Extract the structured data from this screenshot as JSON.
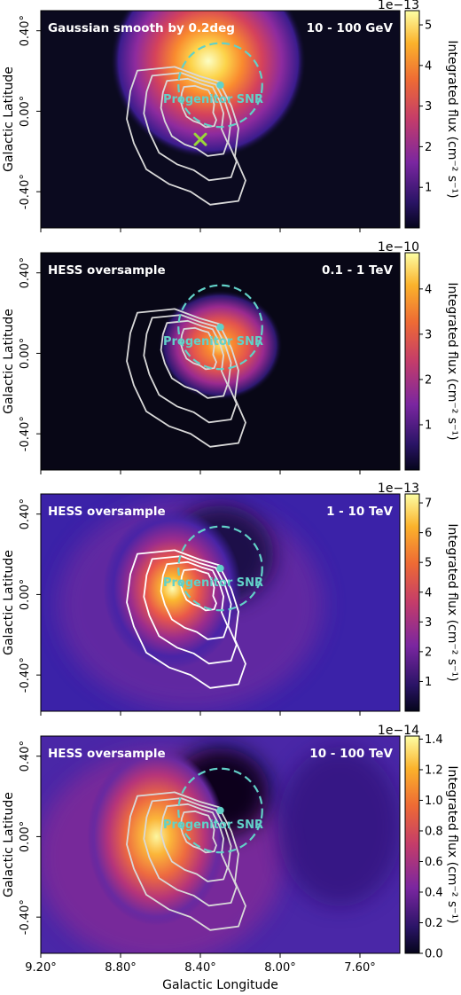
{
  "figure": {
    "ylabel": "Galactic Latitude",
    "xlabel": "Galactic Longitude",
    "colorbar_label": "Integrated flux (cm⁻² s⁻¹)",
    "source_label": "Progenitor SNR"
  },
  "chart_data": [
    {
      "type": "heatmap",
      "title": "Gaussian smooth by 0.2deg",
      "energy_band": "10 - 100 GeV",
      "ylabel": "Galactic Latitude",
      "xlabel": "",
      "yticks": [
        "0.40°",
        "0.00°",
        "-0.40°"
      ],
      "xlim": [
        9.2,
        7.4
      ],
      "ylim": [
        -0.58,
        0.5
      ],
      "colorbar": {
        "scale_label": "1e−13",
        "ticks": [
          1,
          2,
          3,
          4,
          5
        ],
        "max": 5.35,
        "min": 0
      },
      "hotspot": {
        "l": 8.36,
        "b": 0.25,
        "peak": 5.2
      },
      "marker": {
        "symbol": "x",
        "l": 8.4,
        "b": -0.14,
        "color": "#9ad63a"
      }
    },
    {
      "type": "heatmap",
      "title": "HESS oversample",
      "energy_band": "0.1 - 1 TeV",
      "ylabel": "Galactic Latitude",
      "xlabel": "",
      "yticks": [
        "0.40°",
        "0.00°",
        "-0.40°"
      ],
      "xlim": [
        9.2,
        7.4
      ],
      "ylim": [
        -0.58,
        0.5
      ],
      "colorbar": {
        "scale_label": "1e−10",
        "ticks": [
          1,
          2,
          3,
          4
        ],
        "max": 4.8,
        "min": 0
      },
      "hotspot": {
        "l": 8.3,
        "b": 0.04,
        "peak": 4.8
      }
    },
    {
      "type": "heatmap",
      "title": "HESS oversample",
      "energy_band": "1 - 10 TeV",
      "ylabel": "Galactic Latitude",
      "xlabel": "",
      "yticks": [
        "0.40°",
        "0.00°",
        "-0.40°"
      ],
      "xlim": [
        9.2,
        7.4
      ],
      "ylim": [
        -0.58,
        0.5
      ],
      "colorbar": {
        "scale_label": "1e−13",
        "ticks": [
          1,
          2,
          3,
          4,
          5,
          6,
          7
        ],
        "max": 7.3,
        "min": 0
      },
      "hotspot": {
        "l": 8.54,
        "b": 0.03,
        "peak": 7.0
      }
    },
    {
      "type": "heatmap",
      "title": "HESS oversample",
      "energy_band": "10 - 100 TeV",
      "ylabel": "Galactic Latitude",
      "xlabel": "Galactic Longitude",
      "yticks": [
        "0.40°",
        "0.00°",
        "-0.40°"
      ],
      "xticks": [
        "9.20°",
        "8.80°",
        "8.40°",
        "8.00°",
        "7.60°"
      ],
      "xlim": [
        9.2,
        7.4
      ],
      "ylim": [
        -0.58,
        0.5
      ],
      "colorbar": {
        "scale_label": "1e−14",
        "ticks": [
          0.0,
          0.2,
          0.4,
          0.6,
          0.8,
          1.0,
          1.2,
          1.4
        ],
        "tick_labels": [
          "0.0",
          "0.2",
          "0.4",
          "0.6",
          "0.8",
          "1.0",
          "1.2",
          "1.4"
        ],
        "max": 1.42,
        "min": 0
      },
      "hotspot": {
        "l": 8.62,
        "b": 0.0,
        "peak": 1.35
      }
    }
  ],
  "snr": {
    "l": 8.3,
    "b": 0.13,
    "radius_deg": 0.21
  },
  "colors": {
    "snr": "#62d1c8",
    "contour": "#d9d9d9",
    "contour_bright": "#ffffff"
  }
}
